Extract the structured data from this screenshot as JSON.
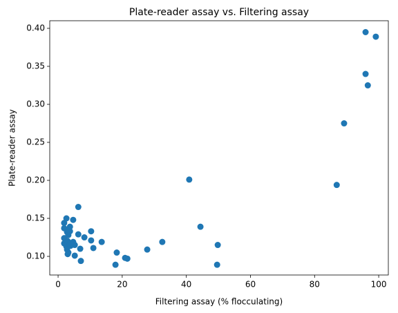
{
  "chart_data": {
    "type": "scatter",
    "title": "Plate-reader assay vs. Filtering assay",
    "xlabel": "Filtering assay (% flocculating)",
    "ylabel": "Plate-reader assay",
    "color": "#1f77b4",
    "x": [
      95.9,
      99.1,
      95.9,
      96.6,
      89.2,
      86.9,
      40.9,
      44.4,
      49.8,
      49.6,
      32.5,
      27.8,
      21.6,
      20.9,
      18.3,
      17.9,
      13.6,
      11.0,
      10.3,
      10.3,
      8.2,
      6.9,
      7.1,
      6.3,
      6.3,
      5.2,
      4.7,
      4.7,
      5.2,
      3.7,
      3.7,
      2.8,
      2.6,
      1.9,
      1.9,
      1.9,
      1.9,
      2.6,
      2.8,
      3.2,
      3.0,
      3.2,
      3.4,
      3.9,
      3.0,
      3.7
    ],
    "y": [
      0.395,
      0.389,
      0.34,
      0.325,
      0.275,
      0.194,
      0.201,
      0.139,
      0.115,
      0.089,
      0.119,
      0.109,
      0.097,
      0.098,
      0.105,
      0.089,
      0.119,
      0.111,
      0.133,
      0.121,
      0.125,
      0.11,
      0.094,
      0.165,
      0.129,
      0.101,
      0.148,
      0.119,
      0.115,
      0.133,
      0.139,
      0.132,
      0.15,
      0.144,
      0.137,
      0.124,
      0.117,
      0.113,
      0.109,
      0.105,
      0.12,
      0.128,
      0.135,
      0.114,
      0.103,
      0.117
    ],
    "xlim": [
      -2.6,
      103.0
    ],
    "xticks": [
      0,
      20,
      40,
      60,
      80,
      100
    ],
    "ylim": [
      0.0755,
      0.41
    ],
    "yticks": [
      {
        "value": 0.1,
        "label": "0.10"
      },
      {
        "value": 0.15,
        "label": "0.15"
      },
      {
        "value": 0.2,
        "label": "0.20"
      },
      {
        "value": 0.25,
        "label": "0.25"
      },
      {
        "value": 0.3,
        "label": "0.30"
      },
      {
        "value": 0.35,
        "label": "0.35"
      },
      {
        "value": 0.4,
        "label": "0.40"
      }
    ]
  }
}
